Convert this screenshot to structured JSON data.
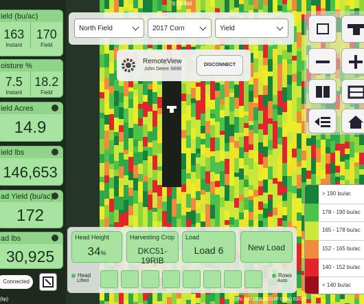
{
  "status_bar": {
    "time": "9:56 AM"
  },
  "left_panel": {
    "cards": [
      {
        "title": "ield (bu/ac)",
        "values": [
          "163",
          "170"
        ],
        "labels": [
          "Instant",
          "Field"
        ]
      },
      {
        "title": "oisture %",
        "values": [
          "7.5",
          "18.2"
        ],
        "labels": [
          "Instant",
          "Field"
        ]
      },
      {
        "title": "ield Acres",
        "value": "14.9"
      },
      {
        "title": "ield lbs",
        "value": "146,653"
      },
      {
        "title": "ad Yield (bu/ac)",
        "value": "172"
      },
      {
        "title": "ad lbs",
        "value": "30,925"
      }
    ],
    "connection": "Connected"
  },
  "dropdowns": [
    "North Field",
    "2017 Corn",
    "Yield"
  ],
  "remote_view": {
    "title": "RemoteView",
    "subtitle": "John Deere S690",
    "button": "DISCONNECT"
  },
  "legend": [
    {
      "label": "> 190 bu/ac",
      "color": "#17803a"
    },
    {
      "label": "178 - 190 bu/ac",
      "color": "#4cc24a"
    },
    {
      "label": "165 - 178 bu/ac",
      "color": "#c9e83a"
    },
    {
      "label": "152 - 165 bu/ac",
      "color": "#f08a3c"
    },
    {
      "label": "140 - 152 bu/ac",
      "color": "#e0262a"
    },
    {
      "label": "< 140 bu/ac",
      "color": "#9a0f1a"
    }
  ],
  "bottom_panel": {
    "head_height": {
      "title": "Head Height",
      "value": "34",
      "unit": "%"
    },
    "crop": {
      "title": "Harvesting Crop",
      "value": "DKC51-19RIB"
    },
    "load": {
      "title": "Load",
      "value": "Load 6"
    },
    "new_load": "New Load",
    "head": {
      "title": "Head",
      "state": "Lifted"
    },
    "rows": {
      "title": "Rows",
      "state": "Auto"
    }
  },
  "footer": {
    "left": "(kp)",
    "right": "D/N: 1471B9CD014F D640 03/02/"
  }
}
